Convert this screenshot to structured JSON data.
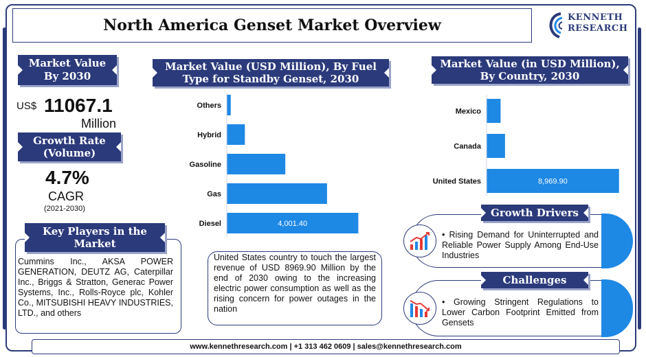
{
  "header": {
    "title": "North America Genset Market Overview"
  },
  "logo": {
    "line1": "KENNETH",
    "line2": "RESEARCH"
  },
  "market_value": {
    "banner": [
      "Market Value",
      "By 2030"
    ],
    "prefix": "US$",
    "value": "11067.1",
    "unit": "Million"
  },
  "growth_rate": {
    "banner": [
      "Growth Rate",
      "(Volume)"
    ],
    "value": "4.7%",
    "label": "CAGR",
    "period": "(2021-2030)"
  },
  "key_players": {
    "banner": [
      "Key Players in the",
      "Market"
    ],
    "text": "Cummins Inc., AKSA POWER GENERATION, DEUTZ AG, Caterpillar Inc., Briggs & Stratton, Generac Power Systems, Inc., Rolls-Royce plc, Kohler Co., MITSUBISHI HEAVY INDUSTRIES, LTD., and others"
  },
  "fuel_chart_banner": [
    "Market Value (USD Million), By Fuel",
    "Type for Standby Genset, 2030"
  ],
  "country_chart_banner": [
    "Market Value (in USD Million),",
    "By Country, 2030"
  ],
  "chart_data": [
    {
      "type": "bar",
      "orientation": "horizontal",
      "title": "Market Value (USD Million), By Fuel Type for Standby Genset, 2030",
      "categories": [
        "Others",
        "Hybrid",
        "Gasoline",
        "Gas",
        "Diesel"
      ],
      "values": [
        120,
        550,
        1780,
        3050,
        4001.4
      ],
      "data_labels": [
        "",
        "",
        "",
        "",
        "4,001.40"
      ],
      "xlim": [
        0,
        4600
      ],
      "color": "#1e88e5",
      "grid": false
    },
    {
      "type": "bar",
      "orientation": "horizontal",
      "title": "Market Value (in USD Million), By Country, 2030",
      "categories": [
        "Mexico",
        "Canada",
        "United States"
      ],
      "values": [
        950,
        1250,
        8969.9
      ],
      "data_labels": [
        "",
        "",
        "8,969.90"
      ],
      "xlim": [
        0,
        9400
      ],
      "color": "#1e88e5",
      "grid": false
    }
  ],
  "insight": {
    "text": "United States country to touch the largest revenue of USD 8969.90 Million by the end of 2030 owing to the increasing electric power consumption as well as the rising concern for power outages in the nation"
  },
  "growth_drivers": {
    "banner": "Growth Drivers",
    "text": "Rising Demand for Uninterrupted and Reliable Power Supply Among End-Use Industries",
    "icon": "rising-chart-icon"
  },
  "challenges": {
    "banner": "Challenges",
    "text": "Growing Stringent Regulations to Lower Carbon Footprint Emitted from Gensets",
    "icon": "falling-chart-icon"
  },
  "footer": {
    "text": "www.kennethresearch.com | +1 313 462 0609 | sales@kennethresearch.com"
  }
}
